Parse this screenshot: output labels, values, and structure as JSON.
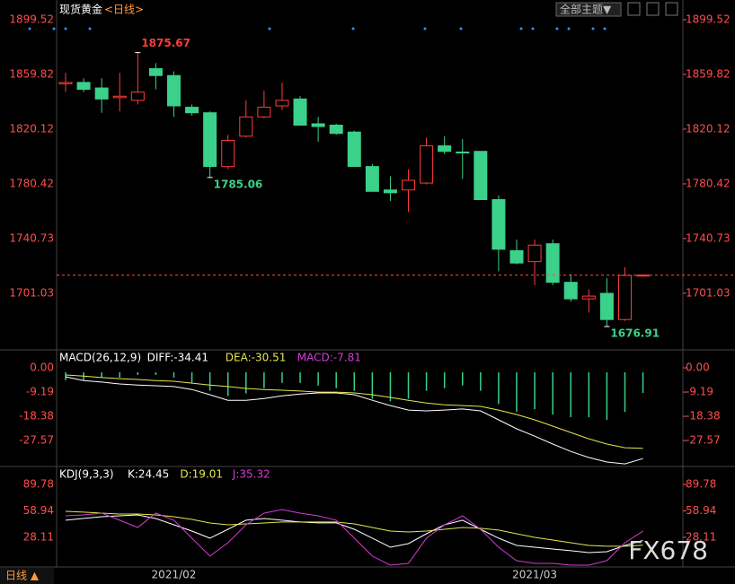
{
  "header": {
    "symbol": "现货黄金",
    "period": "<日线>",
    "theme_button": "全部主题▼"
  },
  "footer": {
    "period": "日线 ▲",
    "watermark": "FX678"
  },
  "chart_data": [
    {
      "type": "candlestick",
      "categories": [
        null,
        null,
        null,
        null,
        null,
        null,
        "2021/02",
        null,
        null,
        null,
        null,
        null,
        null,
        null,
        null,
        null,
        null,
        null,
        null,
        null,
        null,
        null,
        null,
        null,
        null,
        null,
        "2021/03",
        null,
        null,
        null,
        null,
        null,
        null
      ],
      "open": [
        1853,
        1854,
        1850,
        1843,
        1841,
        1864,
        1859,
        1836,
        1832,
        1793,
        1815,
        1829,
        1837,
        1842,
        1824,
        1823,
        1818,
        1793,
        1776,
        1776,
        1781,
        1808,
        1803.5,
        1804,
        1769,
        1732,
        1724,
        1737,
        1709,
        1697,
        1701,
        1682,
        1714
      ],
      "high": [
        1861,
        1857,
        1857,
        1861,
        1875.67,
        1868,
        1862,
        1838,
        1833,
        1816,
        1841,
        1848,
        1854,
        1844,
        1829,
        1824,
        1819,
        1795,
        1786,
        1791,
        1814,
        1815,
        1813,
        1804,
        1772,
        1740,
        1740,
        1740,
        1715,
        1704,
        1712,
        1720,
        1715
      ],
      "low": [
        1847,
        1847,
        1832,
        1833,
        1838,
        1849,
        1829,
        1830,
        1785.06,
        1791,
        1814,
        1828,
        1834,
        1823,
        1811,
        1816,
        1793,
        1775,
        1768,
        1760,
        1780,
        1802,
        1784,
        1769,
        1717,
        1722,
        1707,
        1707,
        1695,
        1687,
        1676.91,
        1681,
        1713
      ],
      "close": [
        1854,
        1849,
        1842,
        1844,
        1847,
        1859,
        1837,
        1832,
        1793,
        1812,
        1829,
        1836,
        1841,
        1823,
        1822,
        1817,
        1793,
        1775,
        1774,
        1783,
        1808,
        1804,
        1803,
        1769,
        1733,
        1723,
        1736,
        1709,
        1697,
        1699,
        1682,
        1714,
        1714.2
      ],
      "up_color": "#ff3c3c",
      "down_color": "#3bd18a",
      "ylim": [
        1660,
        1908.6
      ],
      "yticks": [
        1899.52,
        1859.82,
        1820.12,
        1780.42,
        1740.73,
        1701.03
      ]
    },
    {
      "type": "macd",
      "title": "MACD(26,12,9)",
      "series": [
        {
          "name": "DIFF:-34.41",
          "color": "#ffffff",
          "values": [
            -3.4,
            -4.8,
            -5.4,
            -6.1,
            -6.5,
            -6.8,
            -7.1,
            -8.2,
            -10.2,
            -12.3,
            -12.3,
            -11.6,
            -10.6,
            -9.9,
            -9.5,
            -9.5,
            -10.2,
            -12.3,
            -14.3,
            -16.0,
            -16.3,
            -16.0,
            -15.6,
            -16.3,
            -19.7,
            -23.1,
            -25.9,
            -28.9,
            -31.7,
            -34.0,
            -35.7,
            -36.4,
            -34.41
          ]
        },
        {
          "name": "DEA:-30.51",
          "color": "#e6e64c",
          "values": [
            -2.7,
            -3.1,
            -3.7,
            -4.1,
            -4.4,
            -4.8,
            -5.1,
            -5.8,
            -6.5,
            -7.1,
            -7.8,
            -8.2,
            -8.5,
            -8.8,
            -9.2,
            -9.2,
            -9.5,
            -10.2,
            -11.2,
            -12.3,
            -13.3,
            -14.0,
            -14.3,
            -14.6,
            -16.0,
            -17.7,
            -19.7,
            -22.1,
            -24.5,
            -26.9,
            -28.9,
            -30.3,
            -30.51
          ]
        },
        {
          "name": "MACD:-7.81",
          "color": "#d63cd6",
          "values": [
            -3,
            -3,
            -2,
            -2,
            -1,
            -1,
            -2,
            -4,
            -7,
            -9,
            -8,
            -6,
            -4,
            -4,
            -5,
            -6,
            -7,
            -10,
            -11,
            -10,
            -7,
            -6,
            -5,
            -7,
            -12,
            -15,
            -14,
            -16,
            -17,
            -17,
            -18,
            -15,
            -7.81
          ]
        }
      ],
      "ylim": [
        -37.4,
        5.8
      ],
      "yticks": [
        {
          "value": 0,
          "label": "0.00"
        },
        -9.19,
        -18.38,
        -27.57
      ]
    },
    {
      "type": "line",
      "title": "KDJ(9,3,3)",
      "series": [
        {
          "name": "K:24.45",
          "color": "#ffffff",
          "values": [
            48.0,
            50.1,
            52.1,
            53.2,
            54.2,
            50.0,
            42.7,
            35.4,
            27.1,
            37.5,
            48.0,
            50.0,
            48.0,
            45.9,
            44.9,
            44.9,
            37.5,
            27.1,
            16.6,
            20.8,
            32.3,
            42.7,
            48.0,
            37.5,
            27.1,
            18.7,
            16.6,
            14.5,
            12.5,
            10.3,
            11.4,
            18.7,
            24.45
          ]
        },
        {
          "name": "D:19.01",
          "color": "#e6e64c",
          "values": [
            58.4,
            57.4,
            56.3,
            55.3,
            55.3,
            54.2,
            52.1,
            49.0,
            44.8,
            42.7,
            43.8,
            44.8,
            45.9,
            45.9,
            45.9,
            45.9,
            43.8,
            39.6,
            35.4,
            34.4,
            35.4,
            37.5,
            39.6,
            38.6,
            36.5,
            32.3,
            28.1,
            25.0,
            21.8,
            18.7,
            17.7,
            17.7,
            19.01
          ]
        },
        {
          "name": "J:35.32",
          "color": "#d63cd6",
          "values": [
            53.2,
            54.2,
            56.3,
            48.0,
            39.6,
            56.3,
            48.0,
            27.1,
            6.2,
            21.8,
            42.7,
            56.3,
            60.5,
            56.3,
            53.2,
            48.0,
            27.1,
            6.2,
            -4.3,
            -2.2,
            27.1,
            42.7,
            53.2,
            37.5,
            16.6,
            0.9,
            -2.2,
            -2.2,
            -4.3,
            -4.3,
            0.9,
            21.8,
            35.32
          ]
        }
      ],
      "ylim": [
        -6.4,
        107.5
      ],
      "yticks": [
        89.78,
        58.94,
        28.11
      ]
    }
  ]
}
